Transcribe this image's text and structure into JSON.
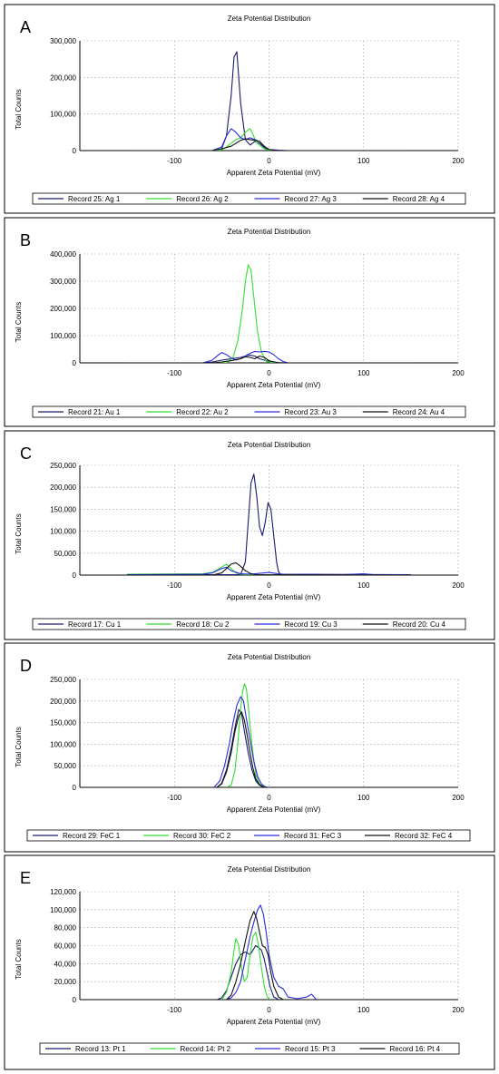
{
  "colors": {
    "series_1": "#1a1a6b",
    "series_2": "#33dd33",
    "series_3": "#2a2ae0",
    "series_4": "#111111"
  },
  "chart_data": [
    {
      "type": "line",
      "panel_label": "A",
      "title": "Zeta Potential Distribution",
      "xlabel": "Apparent Zeta Potential (mV)",
      "ylabel": "Total Counts",
      "xlim": [
        -200,
        200
      ],
      "ylim": [
        0,
        300000
      ],
      "x_ticks": [
        -100,
        0,
        100,
        200
      ],
      "x_tick_labels": [
        "-100",
        "0",
        "100",
        "200"
      ],
      "y_ticks": [
        0,
        100000,
        200000,
        300000
      ],
      "y_tick_labels": [
        "0",
        "100,000",
        "200,000",
        "300,000"
      ],
      "grid": true,
      "legend_position": "bottom",
      "series": [
        {
          "name": "Record 25: Ag 1",
          "x": [
            -150,
            -60,
            -50,
            -45,
            -40,
            -37,
            -34,
            -30,
            -25,
            -20,
            -15,
            -10,
            -5,
            0,
            10,
            20
          ],
          "y": [
            0,
            0,
            5000,
            40000,
            150000,
            255000,
            270000,
            130000,
            30000,
            15000,
            25000,
            20000,
            8000,
            2000,
            0,
            0
          ]
        },
        {
          "name": "Record 26: Ag 2",
          "x": [
            -150,
            -60,
            -50,
            -45,
            -40,
            -35,
            -30,
            -25,
            -20,
            -17,
            -14,
            -10,
            -5,
            0,
            10,
            20,
            150
          ],
          "y": [
            0,
            0,
            2000,
            10000,
            20000,
            30000,
            35000,
            50000,
            60000,
            45000,
            25000,
            15000,
            5000,
            1000,
            0,
            0,
            0
          ]
        },
        {
          "name": "Record 27: Ag 3",
          "x": [
            -150,
            -60,
            -50,
            -45,
            -40,
            -35,
            -30,
            -25,
            -20,
            -15,
            -10,
            -5,
            0,
            10,
            20,
            150
          ],
          "y": [
            0,
            0,
            10000,
            40000,
            60000,
            50000,
            35000,
            30000,
            35000,
            30000,
            25000,
            10000,
            3000,
            1000,
            0,
            0
          ]
        },
        {
          "name": "Record 28: Ag 4",
          "x": [
            -150,
            -60,
            -50,
            -40,
            -35,
            -30,
            -25,
            -20,
            -15,
            -10,
            -5,
            0,
            10,
            150
          ],
          "y": [
            0,
            0,
            5000,
            12000,
            20000,
            28000,
            32000,
            30000,
            28000,
            25000,
            12000,
            3000,
            0,
            0
          ]
        }
      ]
    },
    {
      "type": "line",
      "panel_label": "B",
      "title": "Zeta Potential Distribution",
      "xlabel": "Apparent Zeta Potential (mV)",
      "ylabel": "Total Counts",
      "xlim": [
        -200,
        200
      ],
      "ylim": [
        0,
        400000
      ],
      "x_ticks": [
        -100,
        0,
        100,
        200
      ],
      "x_tick_labels": [
        "-100",
        "0",
        "100",
        "200"
      ],
      "y_ticks": [
        0,
        100000,
        200000,
        300000,
        400000
      ],
      "y_tick_labels": [
        "0",
        "100,000",
        "200,000",
        "300,000",
        "400,000"
      ],
      "grid": true,
      "legend_position": "bottom",
      "series": [
        {
          "name": "Record 21: Au 1",
          "x": [
            -150,
            -70,
            -60,
            -50,
            -40,
            -30,
            -25,
            -20,
            -15,
            -10,
            0,
            10,
            20,
            150
          ],
          "y": [
            0,
            0,
            3000,
            10000,
            15000,
            20000,
            25000,
            28000,
            25000,
            15000,
            5000,
            1000,
            0,
            0
          ]
        },
        {
          "name": "Record 22: Au 2",
          "x": [
            -150,
            -45,
            -38,
            -33,
            -28,
            -25,
            -22,
            -19,
            -16,
            -12,
            -8,
            -3,
            5,
            150
          ],
          "y": [
            0,
            0,
            20000,
            80000,
            200000,
            300000,
            360000,
            340000,
            240000,
            110000,
            40000,
            5000,
            0,
            0
          ]
        },
        {
          "name": "Record 23: Au 3",
          "x": [
            -150,
            -70,
            -60,
            -55,
            -50,
            -45,
            -40,
            -35,
            -30,
            -25,
            -20,
            -15,
            -10,
            -5,
            0,
            5,
            10,
            15,
            20,
            150
          ],
          "y": [
            0,
            0,
            10000,
            25000,
            38000,
            30000,
            18000,
            10000,
            15000,
            25000,
            35000,
            42000,
            40000,
            42000,
            40000,
            30000,
            15000,
            5000,
            0,
            0
          ]
        },
        {
          "name": "Record 24: Au 4",
          "x": [
            -150,
            -60,
            -50,
            -40,
            -30,
            -25,
            -20,
            -15,
            -10,
            -5,
            0,
            10,
            150
          ],
          "y": [
            0,
            0,
            3000,
            8000,
            15000,
            22000,
            20000,
            15000,
            25000,
            20000,
            8000,
            0,
            0
          ]
        }
      ]
    },
    {
      "type": "line",
      "panel_label": "C",
      "title": "Zeta Potential Distribution",
      "xlabel": "Apparent Zeta Potential (mV)",
      "ylabel": "Total Counts",
      "xlim": [
        -200,
        200
      ],
      "ylim": [
        0,
        250000
      ],
      "x_ticks": [
        -100,
        0,
        100,
        200
      ],
      "x_tick_labels": [
        "-100",
        "0",
        "100",
        "200"
      ],
      "y_ticks": [
        0,
        50000,
        100000,
        150000,
        200000,
        250000
      ],
      "y_tick_labels": [
        "0",
        "50,000",
        "100,000",
        "150,000",
        "200,000",
        "250,000"
      ],
      "grid": true,
      "legend_position": "bottom",
      "series": [
        {
          "name": "Record 17: Cu 1",
          "x": [
            -150,
            -30,
            -25,
            -22,
            -19,
            -16,
            -13,
            -10,
            -7,
            -4,
            -1,
            2,
            5,
            8,
            10,
            12,
            150
          ],
          "y": [
            1000,
            1000,
            30000,
            120000,
            210000,
            230000,
            180000,
            110000,
            90000,
            120000,
            165000,
            150000,
            90000,
            30000,
            8000,
            2000,
            1000
          ]
        },
        {
          "name": "Record 18: Cu 2",
          "x": [
            -150,
            -70,
            -60,
            -55,
            -50,
            -45,
            -40,
            -35,
            -30,
            -25,
            150
          ],
          "y": [
            2000,
            3000,
            6000,
            12000,
            18000,
            25000,
            15000,
            5000,
            2000,
            1000,
            1000
          ]
        },
        {
          "name": "Record 19: Cu 3",
          "x": [
            -150,
            -70,
            -60,
            -55,
            -50,
            -45,
            -40,
            -30,
            -20,
            -10,
            0,
            10,
            20,
            40,
            60,
            80,
            100,
            110,
            150
          ],
          "y": [
            1000,
            2000,
            5000,
            10000,
            15000,
            18000,
            10000,
            3000,
            2000,
            4000,
            6000,
            3000,
            1000,
            2000,
            1000,
            1000,
            3000,
            1000,
            1000
          ]
        },
        {
          "name": "Record 20: Cu 4",
          "x": [
            -150,
            -60,
            -50,
            -45,
            -40,
            -35,
            -30,
            -25,
            -20,
            -15,
            150
          ],
          "y": [
            0,
            0,
            5000,
            15000,
            25000,
            28000,
            20000,
            10000,
            4000,
            1000,
            0
          ]
        }
      ]
    },
    {
      "type": "line",
      "panel_label": "D",
      "title": "Zeta Potential Distribution",
      "xlabel": "Apparent Zeta Potential (mV)",
      "ylabel": "Total Counts",
      "xlim": [
        -200,
        200
      ],
      "ylim": [
        0,
        250000
      ],
      "x_ticks": [
        -100,
        0,
        100,
        200
      ],
      "x_tick_labels": [
        "-100",
        "0",
        "100",
        "200"
      ],
      "y_ticks": [
        0,
        50000,
        100000,
        150000,
        200000,
        250000
      ],
      "y_tick_labels": [
        "0",
        "50,000",
        "100,000",
        "150,000",
        "200,000",
        "250,000"
      ],
      "grid": true,
      "legend_position": "bottom",
      "series": [
        {
          "name": "Record 29: FeC 1",
          "x": [
            -55,
            -50,
            -45,
            -40,
            -35,
            -32,
            -29,
            -26,
            -22,
            -18,
            -14,
            -10,
            -6,
            -2
          ],
          "y": [
            0,
            10000,
            40000,
            90000,
            150000,
            180000,
            170000,
            130000,
            80000,
            40000,
            15000,
            5000,
            1000,
            0
          ]
        },
        {
          "name": "Record 30: FeC 2",
          "x": [
            -45,
            -40,
            -36,
            -33,
            -30,
            -28,
            -26,
            -24,
            -22,
            -20,
            -17,
            -14,
            -10,
            -6,
            -2
          ],
          "y": [
            0,
            5000,
            40000,
            100000,
            180000,
            220000,
            240000,
            230000,
            190000,
            140000,
            80000,
            30000,
            8000,
            1000,
            0
          ]
        },
        {
          "name": "Record 31: FeC 3",
          "x": [
            -58,
            -52,
            -47,
            -42,
            -38,
            -34,
            -30,
            -27,
            -24,
            -20,
            -16,
            -12,
            -8,
            -4,
            0
          ],
          "y": [
            0,
            15000,
            50000,
            100000,
            150000,
            190000,
            210000,
            200000,
            160000,
            110000,
            60000,
            25000,
            8000,
            1000,
            0
          ]
        },
        {
          "name": "Record 32: FeC 4",
          "x": [
            -55,
            -50,
            -45,
            -40,
            -36,
            -32,
            -29,
            -26,
            -23,
            -20,
            -17,
            -14,
            -10,
            -6,
            -2
          ],
          "y": [
            0,
            8000,
            35000,
            80000,
            130000,
            165000,
            175000,
            155000,
            120000,
            80000,
            45000,
            20000,
            6000,
            1000,
            0
          ]
        }
      ]
    },
    {
      "type": "line",
      "panel_label": "E",
      "title": "Zeta Potential Distribution",
      "xlabel": "Apparent Zeta Potential (mV)",
      "ylabel": "Total Counts",
      "xlim": [
        -200,
        200
      ],
      "ylim": [
        0,
        120000
      ],
      "x_ticks": [
        -100,
        0,
        100,
        200
      ],
      "x_tick_labels": [
        "-100",
        "0",
        "100",
        "200"
      ],
      "y_ticks": [
        0,
        20000,
        40000,
        60000,
        80000,
        100000,
        120000
      ],
      "y_tick_labels": [
        "0",
        "20,000",
        "40,000",
        "60,000",
        "80,000",
        "100,000",
        "120,000"
      ],
      "grid": true,
      "legend_position": "bottom",
      "series": [
        {
          "name": "Record 13: Pt 1",
          "x": [
            -55,
            -50,
            -45,
            -40,
            -35,
            -30,
            -25,
            -20,
            -17,
            -14,
            -11,
            -8,
            -5,
            -2,
            1,
            5,
            10
          ],
          "y": [
            0,
            2000,
            10000,
            25000,
            40000,
            50000,
            53000,
            50000,
            55000,
            60000,
            58000,
            55000,
            45000,
            30000,
            15000,
            3000,
            0
          ]
        },
        {
          "name": "Record 14: Pt 2",
          "x": [
            -50,
            -45,
            -40,
            -37,
            -35,
            -32,
            -29,
            -26,
            -23,
            -20,
            -17,
            -14,
            -11,
            -8,
            -5,
            -2,
            1
          ],
          "y": [
            0,
            8000,
            30000,
            55000,
            68000,
            60000,
            35000,
            20000,
            25000,
            50000,
            70000,
            75000,
            60000,
            35000,
            15000,
            3000,
            0
          ]
        },
        {
          "name": "Record 15: Pt 3",
          "x": [
            -45,
            -40,
            -35,
            -30,
            -25,
            -20,
            -15,
            -12,
            -9,
            -6,
            -3,
            0,
            5,
            10,
            15,
            20,
            30,
            40,
            45,
            50
          ],
          "y": [
            0,
            2000,
            8000,
            20000,
            45000,
            70000,
            90000,
            100000,
            105000,
            95000,
            75000,
            50000,
            25000,
            15000,
            12000,
            3000,
            1000,
            3000,
            6000,
            0
          ]
        },
        {
          "name": "Record 16: Pt 4",
          "x": [
            -45,
            -40,
            -35,
            -30,
            -25,
            -20,
            -16,
            -13,
            -10,
            -7,
            -4,
            -1,
            2,
            5,
            10,
            15
          ],
          "y": [
            0,
            5000,
            20000,
            40000,
            65000,
            88000,
            98000,
            90000,
            75000,
            60000,
            58000,
            50000,
            30000,
            15000,
            3000,
            0
          ]
        }
      ]
    }
  ]
}
